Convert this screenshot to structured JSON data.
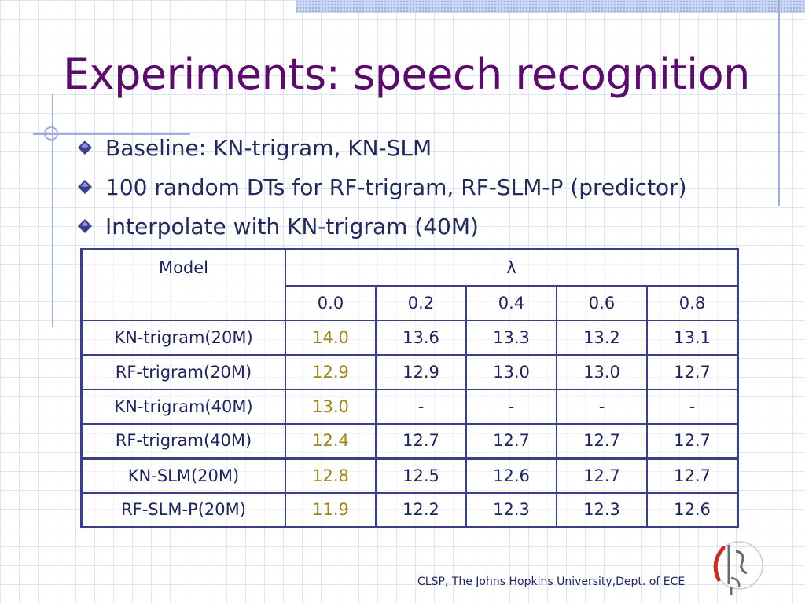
{
  "slide": {
    "title": "Experiments: speech recognition",
    "bullets": [
      "Baseline: KN-trigram, KN-SLM",
      "100 random DTs for RF-trigram, RF-SLM-P (predictor)",
      "Interpolate with KN-trigram (40M)"
    ],
    "footer": "CLSP, The Johns Hopkins University,Dept. of ECE"
  },
  "table": {
    "model_header": "Model",
    "lambda_header": "λ",
    "lambda_values": [
      "0.0",
      "0.2",
      "0.4",
      "0.6",
      "0.8"
    ],
    "rows": [
      {
        "model": "KN-trigram(20M)",
        "values": [
          "14.0",
          "13.6",
          "13.3",
          "13.2",
          "13.1"
        ]
      },
      {
        "model": "RF-trigram(20M)",
        "values": [
          "12.9",
          "12.9",
          "13.0",
          "13.0",
          "12.7"
        ]
      },
      {
        "model": "KN-trigram(40M)",
        "values": [
          "13.0",
          "-",
          "-",
          "-",
          "-"
        ]
      },
      {
        "model": "RF-trigram(40M)",
        "values": [
          "12.4",
          "12.7",
          "12.7",
          "12.7",
          "12.7"
        ]
      },
      {
        "model": "KN-SLM(20M)",
        "values": [
          "12.8",
          "12.5",
          "12.6",
          "12.7",
          "12.7"
        ]
      },
      {
        "model": "RF-SLM-P(20M)",
        "values": [
          "11.9",
          "12.2",
          "12.3",
          "12.3",
          "12.6"
        ]
      }
    ]
  },
  "colors": {
    "title": "#5b0b6b",
    "highlight": "#9a8518",
    "table_border": "#3b3f86"
  }
}
